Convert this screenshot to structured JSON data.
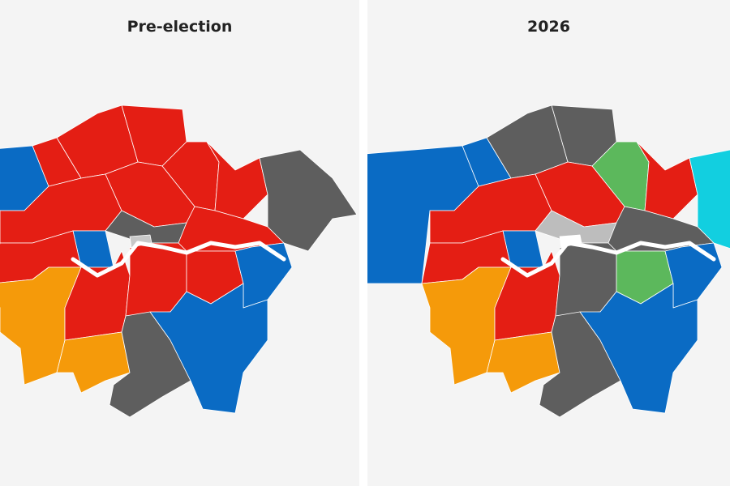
{
  "maps": [
    {
      "title": "Pre-election"
    },
    {
      "title": "2026"
    }
  ]
}
